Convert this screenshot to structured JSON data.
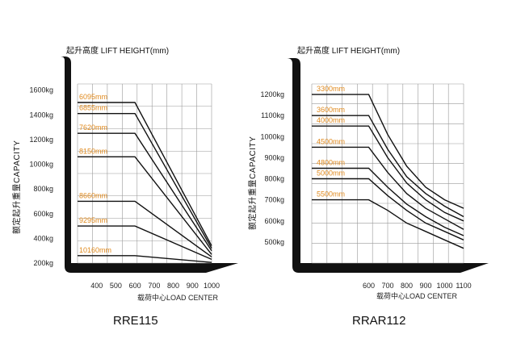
{
  "chart_data": [
    {
      "type": "line",
      "title": "起升高度 LIFT HEIGHT(mm)",
      "ylabel": "额定起升重量CAPACITY",
      "xlabel": "载荷中心LOAD CENTER",
      "model": "RRE115",
      "x_ticks": [
        "400",
        "500",
        "600",
        "700",
        "800",
        "900",
        "1000"
      ],
      "y_ticks": [
        "200kg",
        "400kg",
        "600kg",
        "800kg",
        "1000kg",
        "1200kg",
        "1400kg",
        "1600kg"
      ],
      "xlim": [
        300,
        1000
      ],
      "ylim": [
        200,
        1650
      ],
      "grid": true,
      "series": [
        {
          "name": "6095mm",
          "x": [
            300,
            600,
            1000
          ],
          "y": [
            1500,
            1500,
            340
          ]
        },
        {
          "name": "6855mm",
          "x": [
            300,
            600,
            1000
          ],
          "y": [
            1410,
            1410,
            320
          ]
        },
        {
          "name": "7620mm",
          "x": [
            300,
            600,
            1000
          ],
          "y": [
            1250,
            1250,
            300
          ]
        },
        {
          "name": "8150mm",
          "x": [
            300,
            600,
            1000
          ],
          "y": [
            1060,
            1060,
            270
          ]
        },
        {
          "name": "8660mm",
          "x": [
            300,
            600,
            1000
          ],
          "y": [
            700,
            700,
            250
          ]
        },
        {
          "name": "9295mm",
          "x": [
            300,
            600,
            1000
          ],
          "y": [
            500,
            500,
            230
          ]
        },
        {
          "name": "10160mm",
          "x": [
            300,
            600,
            1000
          ],
          "y": [
            260,
            260,
            205
          ]
        }
      ]
    },
    {
      "type": "line",
      "title": "起升高度 LIFT HEIGHT(mm)",
      "ylabel": "额定起升重量CAPACITY",
      "xlabel": "载荷中心LOAD CENTER",
      "model": "RRAR112",
      "x_ticks": [
        "600",
        "700",
        "800",
        "900",
        "1000",
        "1100"
      ],
      "y_ticks": [
        "500kg",
        "600kg",
        "700kg",
        "800kg",
        "900kg",
        "1000kg",
        "1100kg",
        "1200kg"
      ],
      "xlim": [
        300,
        1100
      ],
      "ylim": [
        400,
        1250
      ],
      "grid": true,
      "series": [
        {
          "name": "3300mm",
          "x": [
            300,
            600,
            700,
            800,
            900,
            1000,
            1100
          ],
          "y": [
            1200,
            1200,
            1010,
            860,
            760,
            700,
            660
          ]
        },
        {
          "name": "3600mm",
          "x": [
            300,
            600,
            700,
            800,
            900,
            1000,
            1100
          ],
          "y": [
            1100,
            1100,
            940,
            810,
            730,
            670,
            620
          ]
        },
        {
          "name": "4000mm",
          "x": [
            300,
            600,
            700,
            800,
            900,
            1000,
            1100
          ],
          "y": [
            1050,
            1050,
            900,
            780,
            700,
            640,
            600
          ]
        },
        {
          "name": "4500mm",
          "x": [
            300,
            600,
            700,
            800,
            900,
            1000,
            1100
          ],
          "y": [
            950,
            950,
            830,
            730,
            660,
            610,
            560
          ]
        },
        {
          "name": "4800mm",
          "x": [
            300,
            600,
            700,
            800,
            900,
            1000,
            1100
          ],
          "y": [
            850,
            850,
            760,
            680,
            620,
            570,
            530
          ]
        },
        {
          "name": "5000mm",
          "x": [
            300,
            600,
            700,
            800,
            900,
            1000,
            1100
          ],
          "y": [
            800,
            800,
            720,
            650,
            590,
            550,
            510
          ]
        },
        {
          "name": "5500mm",
          "x": [
            300,
            600,
            700,
            800,
            900,
            1000,
            1100
          ],
          "y": [
            700,
            700,
            650,
            590,
            550,
            510,
            470
          ]
        }
      ]
    }
  ]
}
